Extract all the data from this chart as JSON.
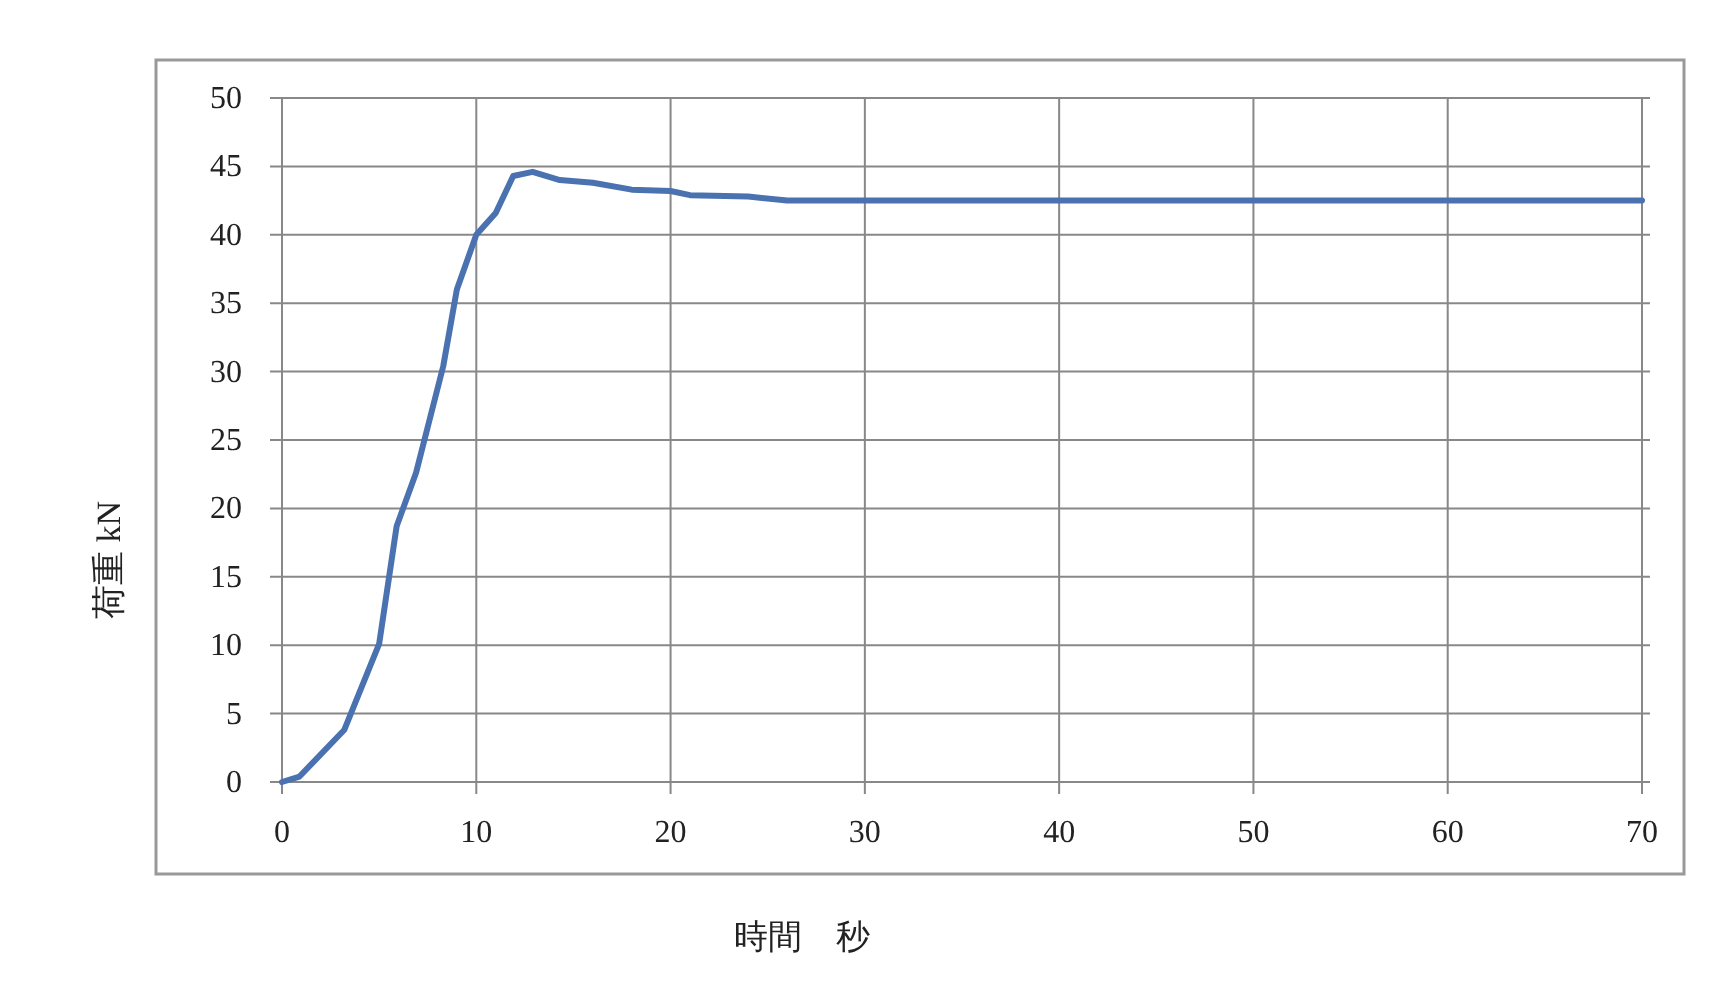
{
  "chart_data": {
    "type": "line",
    "xlabel": "時間　秒",
    "ylabel": "荷重 kN",
    "x": [
      0,
      0.9,
      3.2,
      5.0,
      5.9,
      6.9,
      8.3,
      9.0,
      10.0,
      11.0,
      11.9,
      12.9,
      14.3,
      16,
      18,
      20,
      21,
      24,
      26,
      70
    ],
    "series": [
      {
        "color": "#4a72b0",
        "values": [
          0,
          0.4,
          3.8,
          10.1,
          18.7,
          22.6,
          30.4,
          36,
          40,
          41.6,
          44.3,
          44.6,
          44,
          43.8,
          43.3,
          43.2,
          42.9,
          42.8,
          42.5,
          42.5
        ]
      }
    ],
    "xlim": [
      0,
      70
    ],
    "ylim": [
      0,
      50
    ],
    "xticks": [
      0,
      10,
      20,
      30,
      40,
      50,
      60,
      70
    ],
    "yticks": [
      0,
      5,
      10,
      15,
      20,
      25,
      30,
      35,
      40,
      45,
      50
    ],
    "grid": true
  }
}
